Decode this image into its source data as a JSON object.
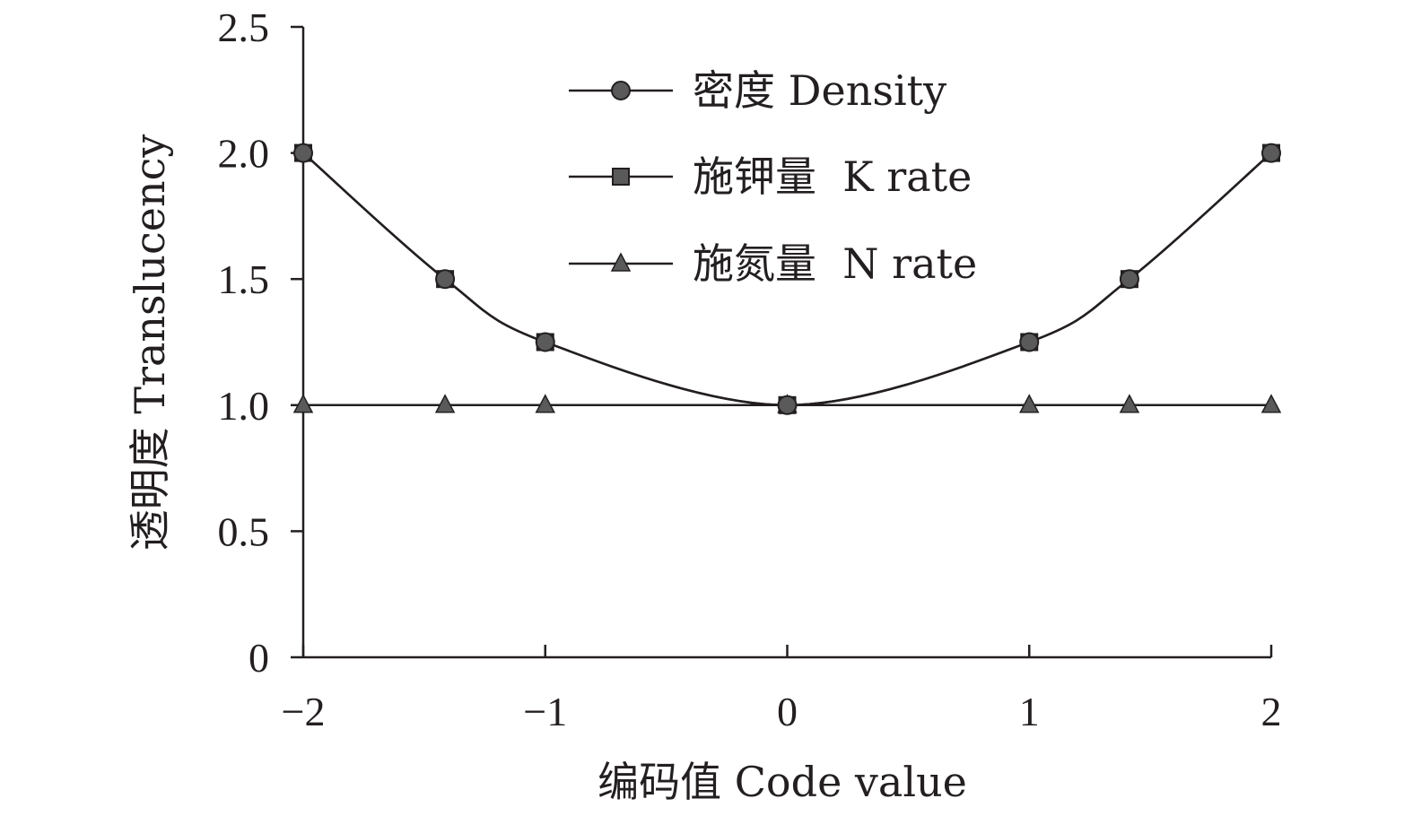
{
  "chart_data": {
    "type": "line",
    "title": "",
    "xlabel": "编码值 Code value",
    "ylabel": "透明度 Translucency",
    "xlim": [
      -2,
      2
    ],
    "ylim": [
      0,
      2.5
    ],
    "x_ticks": [
      -2,
      -1,
      0,
      1,
      2
    ],
    "x_tick_labels": [
      "−2",
      "−1",
      "0",
      "1",
      "2"
    ],
    "y_ticks": [
      0,
      0.5,
      1.0,
      1.5,
      2.0,
      2.5
    ],
    "y_tick_labels": [
      "0",
      "0.5",
      "1.0",
      "1.5",
      "2.0",
      "2.5"
    ],
    "grid": false,
    "legend_position": "top-center",
    "x": [
      -2,
      -1.414,
      -1,
      0,
      1,
      1.414,
      2
    ],
    "series": [
      {
        "name": "密度 Density",
        "marker": "circle",
        "values": [
          2.0,
          1.5,
          1.25,
          1.0,
          1.25,
          1.5,
          2.0
        ]
      },
      {
        "name": "施钾量  K rate",
        "marker": "square",
        "values": [
          2.0,
          1.5,
          1.25,
          1.0,
          1.25,
          1.5,
          2.0
        ]
      },
      {
        "name": "施氮量  N rate",
        "marker": "triangle",
        "values": [
          1.0,
          1.0,
          1.0,
          1.0,
          1.0,
          1.0,
          1.0
        ]
      }
    ],
    "colors": {
      "line": "#231f20",
      "marker_fill": "#5a5a5a",
      "marker_stroke": "#231f20"
    }
  }
}
